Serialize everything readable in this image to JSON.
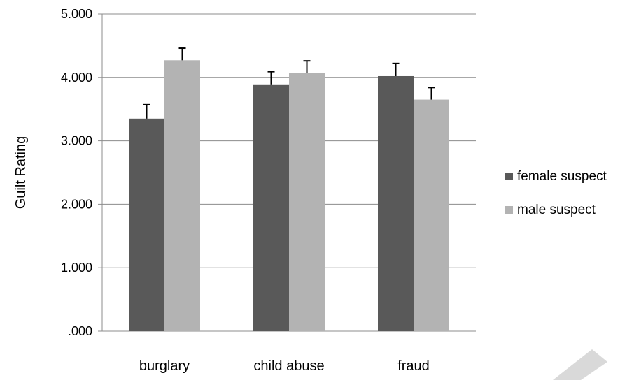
{
  "colors": {
    "female": "#595959",
    "male": "#b3b3b3",
    "grid": "#8c8c8c",
    "error": "#000000",
    "watermark": "#d9d9d9"
  },
  "chart_data": {
    "type": "bar",
    "title": "",
    "xlabel": "",
    "ylabel": "Guilt Rating",
    "ylim": [
      0,
      5
    ],
    "yticks": [
      {
        "value": 0,
        "label": ".000"
      },
      {
        "value": 1,
        "label": "1.000"
      },
      {
        "value": 2,
        "label": "2.000"
      },
      {
        "value": 3,
        "label": "3.000"
      },
      {
        "value": 4,
        "label": "4.000"
      },
      {
        "value": 5,
        "label": "5.000"
      }
    ],
    "categories": [
      "burglary",
      "child abuse",
      "fraud"
    ],
    "series": [
      {
        "name": "female suspect",
        "color_key": "female",
        "values": [
          3.35,
          3.89,
          4.02
        ],
        "errors": [
          0.22,
          0.2,
          0.2
        ]
      },
      {
        "name": "male suspect",
        "color_key": "male",
        "values": [
          4.27,
          4.07,
          3.65
        ],
        "errors": [
          0.19,
          0.19,
          0.19
        ]
      }
    ],
    "grid": true,
    "legend": "right"
  }
}
